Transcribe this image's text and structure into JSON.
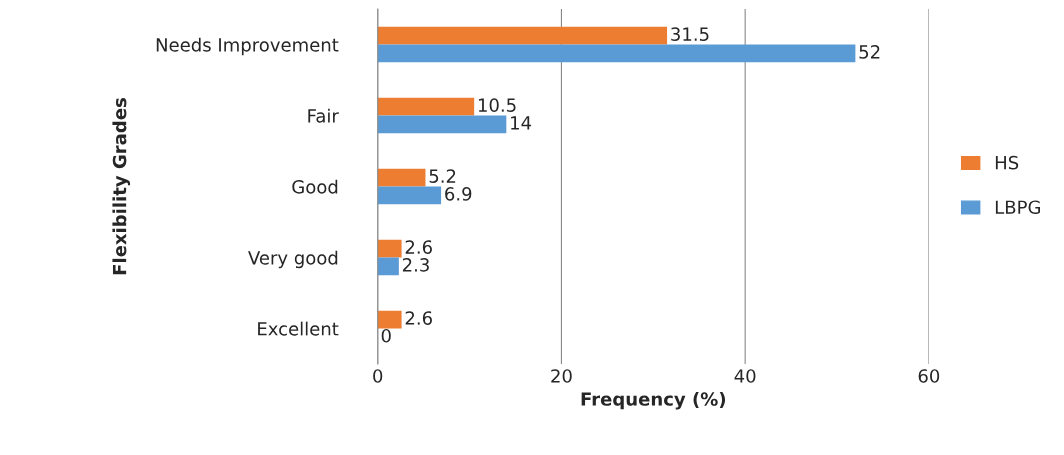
{
  "chart_data": {
    "type": "bar",
    "orientation": "horizontal",
    "xlabel": "Frequency (%)",
    "ylabel": "Flexibility Grades",
    "categories": [
      "Needs Improvement",
      "Fair",
      "Good",
      "Very good",
      "Excellent"
    ],
    "series": [
      {
        "name": "HS",
        "color": "#ed7d31",
        "values": [
          31.5,
          10.5,
          5.2,
          2.6,
          2.6
        ]
      },
      {
        "name": "LBPG",
        "color": "#5b9bd5",
        "values": [
          52,
          14,
          6.9,
          2.3,
          0
        ]
      }
    ],
    "xlim": [
      0,
      60
    ],
    "xticks": [
      0,
      20,
      40,
      60
    ],
    "grid": "x",
    "legend": "right",
    "data_labels": true
  }
}
